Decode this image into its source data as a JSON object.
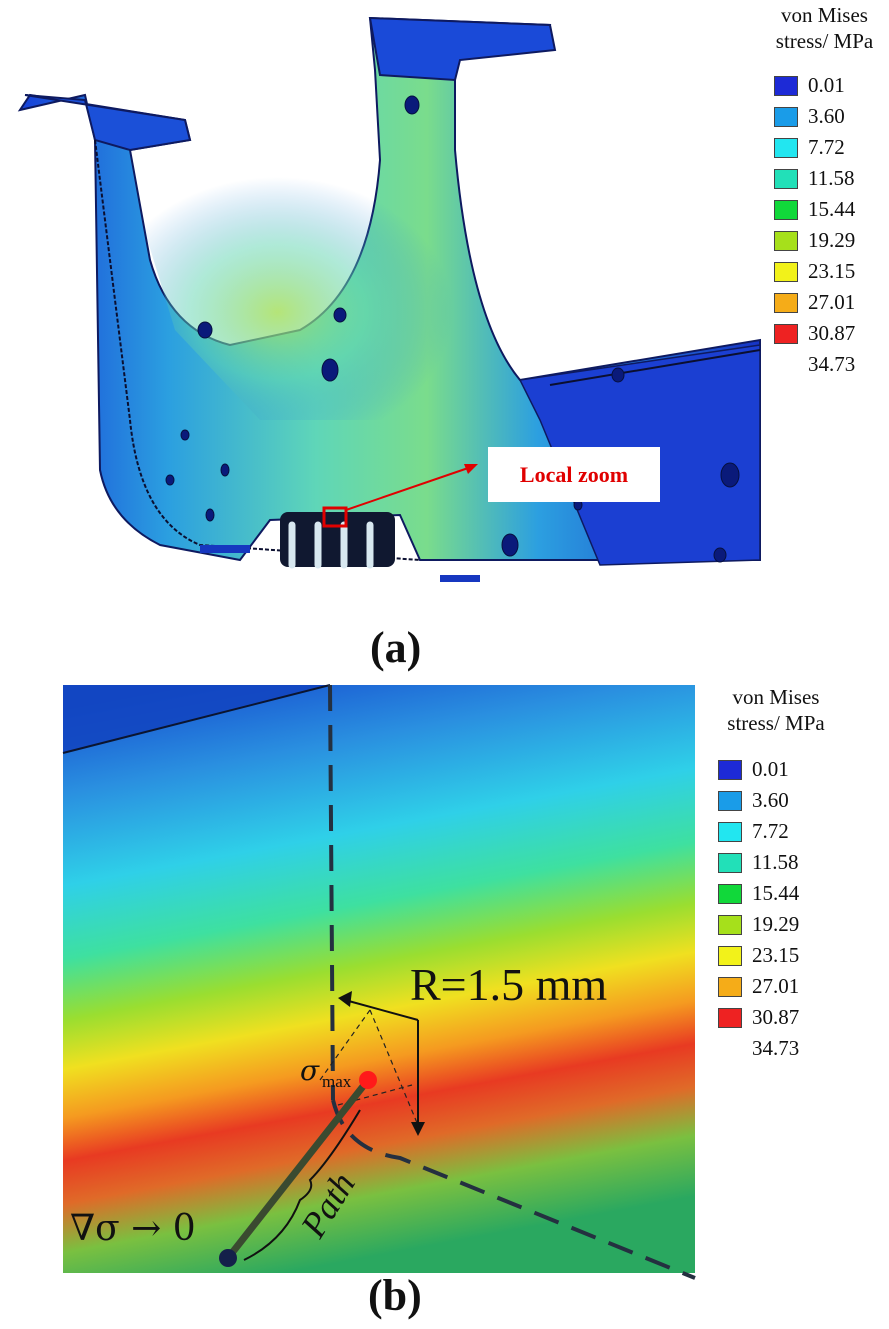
{
  "legend": {
    "title_line1": "von Mises",
    "title_line2": "stress/ MPa",
    "values": [
      "0.01",
      "3.60",
      "7.72",
      "11.58",
      "15.44",
      "19.29",
      "23.15",
      "27.01",
      "30.87",
      "34.73"
    ],
    "colors": [
      "#1d2ad6",
      "#1a9ce8",
      "#22e6f0",
      "#22e0b8",
      "#11d83a",
      "#a6e01b",
      "#f2f21a",
      "#f5ac18",
      "#ee2222"
    ]
  },
  "panel_a": {
    "caption": "(a)",
    "callout": "Local zoom"
  },
  "panel_b": {
    "caption": "(b)",
    "radius_label": "R=1.5 mm",
    "sigma_symbol": "σ",
    "sigma_subscript": "max",
    "gradient_label": "∇σ → 0",
    "path_label": "Path"
  }
}
